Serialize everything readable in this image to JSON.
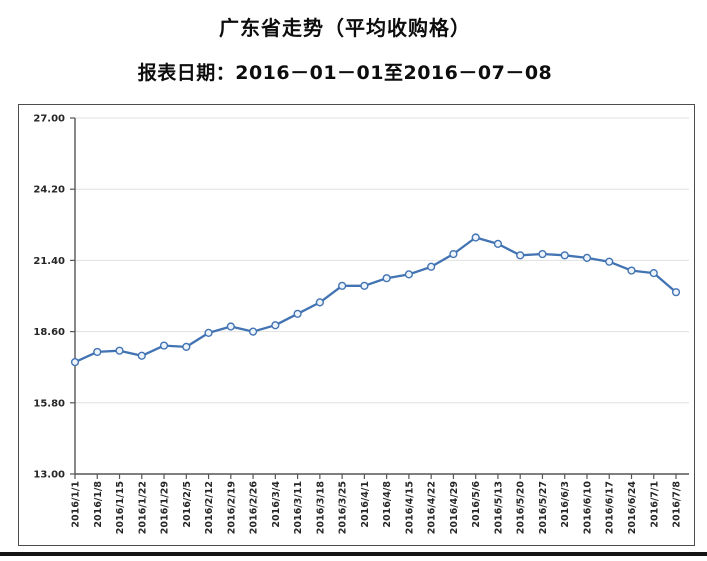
{
  "page": {
    "title": "广东省走势（平均收购格）",
    "subtitle": "报表日期：2016－01－01至2016－07－08"
  },
  "chart_data": {
    "type": "line",
    "title": "广东省走势（平均收购格）",
    "subtitle": "报表日期：2016－01－01至2016－07－08",
    "categories": [
      "2016/1/1",
      "2016/1/8",
      "2016/1/15",
      "2016/1/22",
      "2016/1/29",
      "2016/2/5",
      "2016/2/12",
      "2016/2/19",
      "2016/2/26",
      "2016/3/4",
      "2016/3/11",
      "2016/3/18",
      "2016/3/25",
      "2016/4/1",
      "2016/4/8",
      "2016/4/15",
      "2016/4/22",
      "2016/4/29",
      "2016/5/6",
      "2016/5/13",
      "2016/5/20",
      "2016/5/27",
      "2016/6/3",
      "2016/6/10",
      "2016/6/17",
      "2016/6/24",
      "2016/7/1",
      "2016/7/8"
    ],
    "values": [
      17.4,
      17.8,
      17.85,
      17.65,
      18.05,
      18.0,
      18.55,
      18.8,
      18.6,
      18.85,
      19.3,
      19.75,
      20.4,
      20.4,
      20.7,
      20.85,
      21.15,
      21.65,
      22.3,
      22.05,
      21.6,
      21.65,
      21.6,
      21.5,
      21.35,
      21.0,
      20.9,
      20.15
    ],
    "xlabel": "",
    "ylabel": "",
    "ylim": [
      13.0,
      27.0
    ],
    "ytick_step": 2.8,
    "yticks": [
      "27.00",
      "24.20",
      "21.40",
      "18.60",
      "15.80",
      "13.00"
    ],
    "ytick_values": [
      27.0,
      24.2,
      21.4,
      18.6,
      15.8,
      13.0
    ],
    "grid": true,
    "legend_position": "none",
    "marker": "circle",
    "colors": {
      "line": "#4273b3",
      "marker_fill": "#eef4fb",
      "marker_stroke": "#4273b3",
      "gridline": "#e0e0e0",
      "axis": "#555555",
      "tick_label": "#262626",
      "title_text": "#0d0d0d",
      "chart_border": "#4d4d4d",
      "bottom_bar": "#141414"
    }
  }
}
